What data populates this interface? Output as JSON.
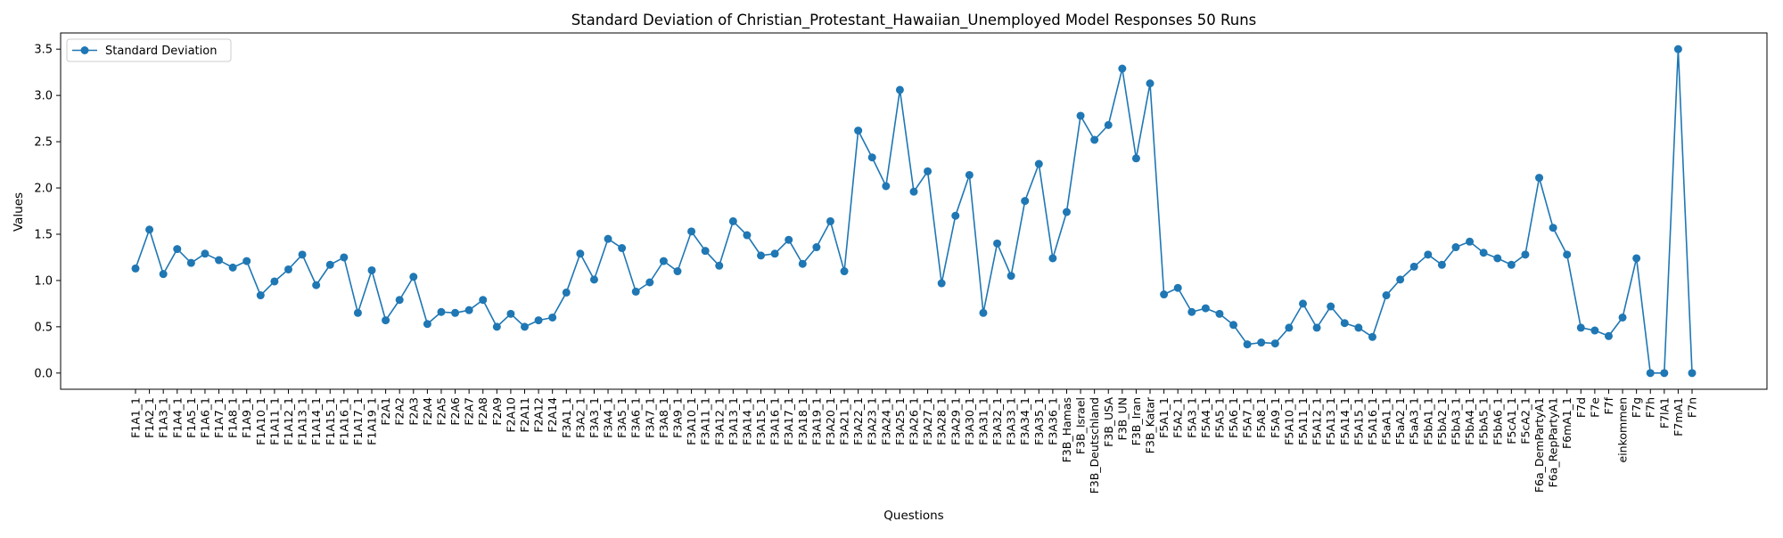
{
  "chart_data": {
    "type": "line",
    "title": "Standard Deviation of Christian_Protestant_Hawaiian_Unemployed Model Responses 50 Runs",
    "xlabel": "Questions",
    "ylabel": "Values",
    "ylim": [
      -0.175,
      3.675
    ],
    "yticks": [
      0.0,
      0.5,
      1.0,
      1.5,
      2.0,
      2.5,
      3.0,
      3.5
    ],
    "grid": false,
    "legend_position": "top-left",
    "line_color": "#1f77b4",
    "categories": [
      "F1A1_1",
      "F1A2_1",
      "F1A3_1",
      "F1A4_1",
      "F1A5_1",
      "F1A6_1",
      "F1A7_1",
      "F1A8_1",
      "F1A9_1",
      "F1A10_1",
      "F1A11_1",
      "F1A12_1",
      "F1A13_1",
      "F1A14_1",
      "F1A15_1",
      "F1A16_1",
      "F1A17_1",
      "F1A19_1",
      "F2A1",
      "F2A2",
      "F2A3",
      "F2A4",
      "F2A5",
      "F2A6",
      "F2A7",
      "F2A8",
      "F2A9",
      "F2A10",
      "F2A11",
      "F2A12",
      "F2A14",
      "F3A1_1",
      "F3A2_1",
      "F3A3_1",
      "F3A4_1",
      "F3A5_1",
      "F3A6_1",
      "F3A7_1",
      "F3A8_1",
      "F3A9_1",
      "F3A10_1",
      "F3A11_1",
      "F3A12_1",
      "F3A13_1",
      "F3A14_1",
      "F3A15_1",
      "F3A16_1",
      "F3A17_1",
      "F3A18_1",
      "F3A19_1",
      "F3A20_1",
      "F3A21_1",
      "F3A22_1",
      "F3A23_1",
      "F3A24_1",
      "F3A25_1",
      "F3A26_1",
      "F3A27_1",
      "F3A28_1",
      "F3A29_1",
      "F3A30_1",
      "F3A31_1",
      "F3A32_1",
      "F3A33_1",
      "F3A34_1",
      "F3A35_1",
      "F3A36_1",
      "F3B_Hamas",
      "F3B_Israel",
      "F3B_Deutschland",
      "F3B_USA",
      "F3B_UN",
      "F3B_Iran",
      "F3B_Katar",
      "F5A1_1",
      "F5A2_1",
      "F5A3_1",
      "F5A4_1",
      "F5A5_1",
      "F5A6_1",
      "F5A7_1",
      "F5A8_1",
      "F5A9_1",
      "F5A10_1",
      "F5A11_1",
      "F5A12_1",
      "F5A13_1",
      "F5A14_1",
      "F5A15_1",
      "F5A16_1",
      "F5aA1_1",
      "F5aA2_1",
      "F5aA3_1",
      "F5bA1_1",
      "F5bA2_1",
      "F5bA3_1",
      "F5bA4_1",
      "F5bA5_1",
      "F5bA6_1",
      "F5cA1_1",
      "F5cA2_1",
      "F6a_DemPartyA1",
      "F6a_RepPartyA1",
      "F6mA1_1",
      "F7d",
      "F7e",
      "F7f",
      "einkommen",
      "F7g",
      "F7h",
      "F7lA1",
      "F7mA1",
      "F7n"
    ],
    "series": [
      {
        "name": "Standard Deviation",
        "values": [
          1.13,
          1.55,
          1.07,
          1.34,
          1.19,
          1.29,
          1.22,
          1.14,
          1.21,
          0.84,
          0.99,
          1.12,
          1.28,
          0.95,
          1.17,
          1.25,
          0.65,
          1.11,
          0.57,
          0.79,
          1.04,
          0.53,
          0.66,
          0.65,
          0.68,
          0.79,
          0.5,
          0.64,
          0.5,
          0.57,
          0.6,
          0.87,
          1.29,
          1.01,
          1.45,
          1.35,
          0.88,
          0.98,
          1.21,
          1.1,
          1.53,
          1.32,
          1.16,
          1.64,
          1.49,
          1.27,
          1.29,
          1.44,
          1.18,
          1.36,
          1.64,
          1.1,
          2.62,
          2.33,
          2.02,
          3.06,
          1.96,
          2.18,
          0.97,
          1.7,
          2.14,
          0.65,
          1.4,
          1.05,
          1.86,
          2.26,
          1.24,
          1.74,
          2.78,
          2.52,
          2.68,
          3.29,
          2.32,
          3.13,
          0.85,
          0.92,
          0.66,
          0.7,
          0.64,
          0.52,
          0.31,
          0.33,
          0.32,
          0.49,
          0.75,
          0.49,
          0.72,
          0.54,
          0.49,
          0.39,
          0.84,
          1.01,
          1.15,
          1.28,
          1.17,
          1.36,
          1.42,
          1.3,
          1.24,
          1.17,
          1.28,
          2.11,
          1.57,
          1.28,
          0.49,
          0.46,
          0.4,
          0.6,
          1.24,
          0.0,
          0.0,
          3.5,
          0.0
        ]
      }
    ]
  }
}
